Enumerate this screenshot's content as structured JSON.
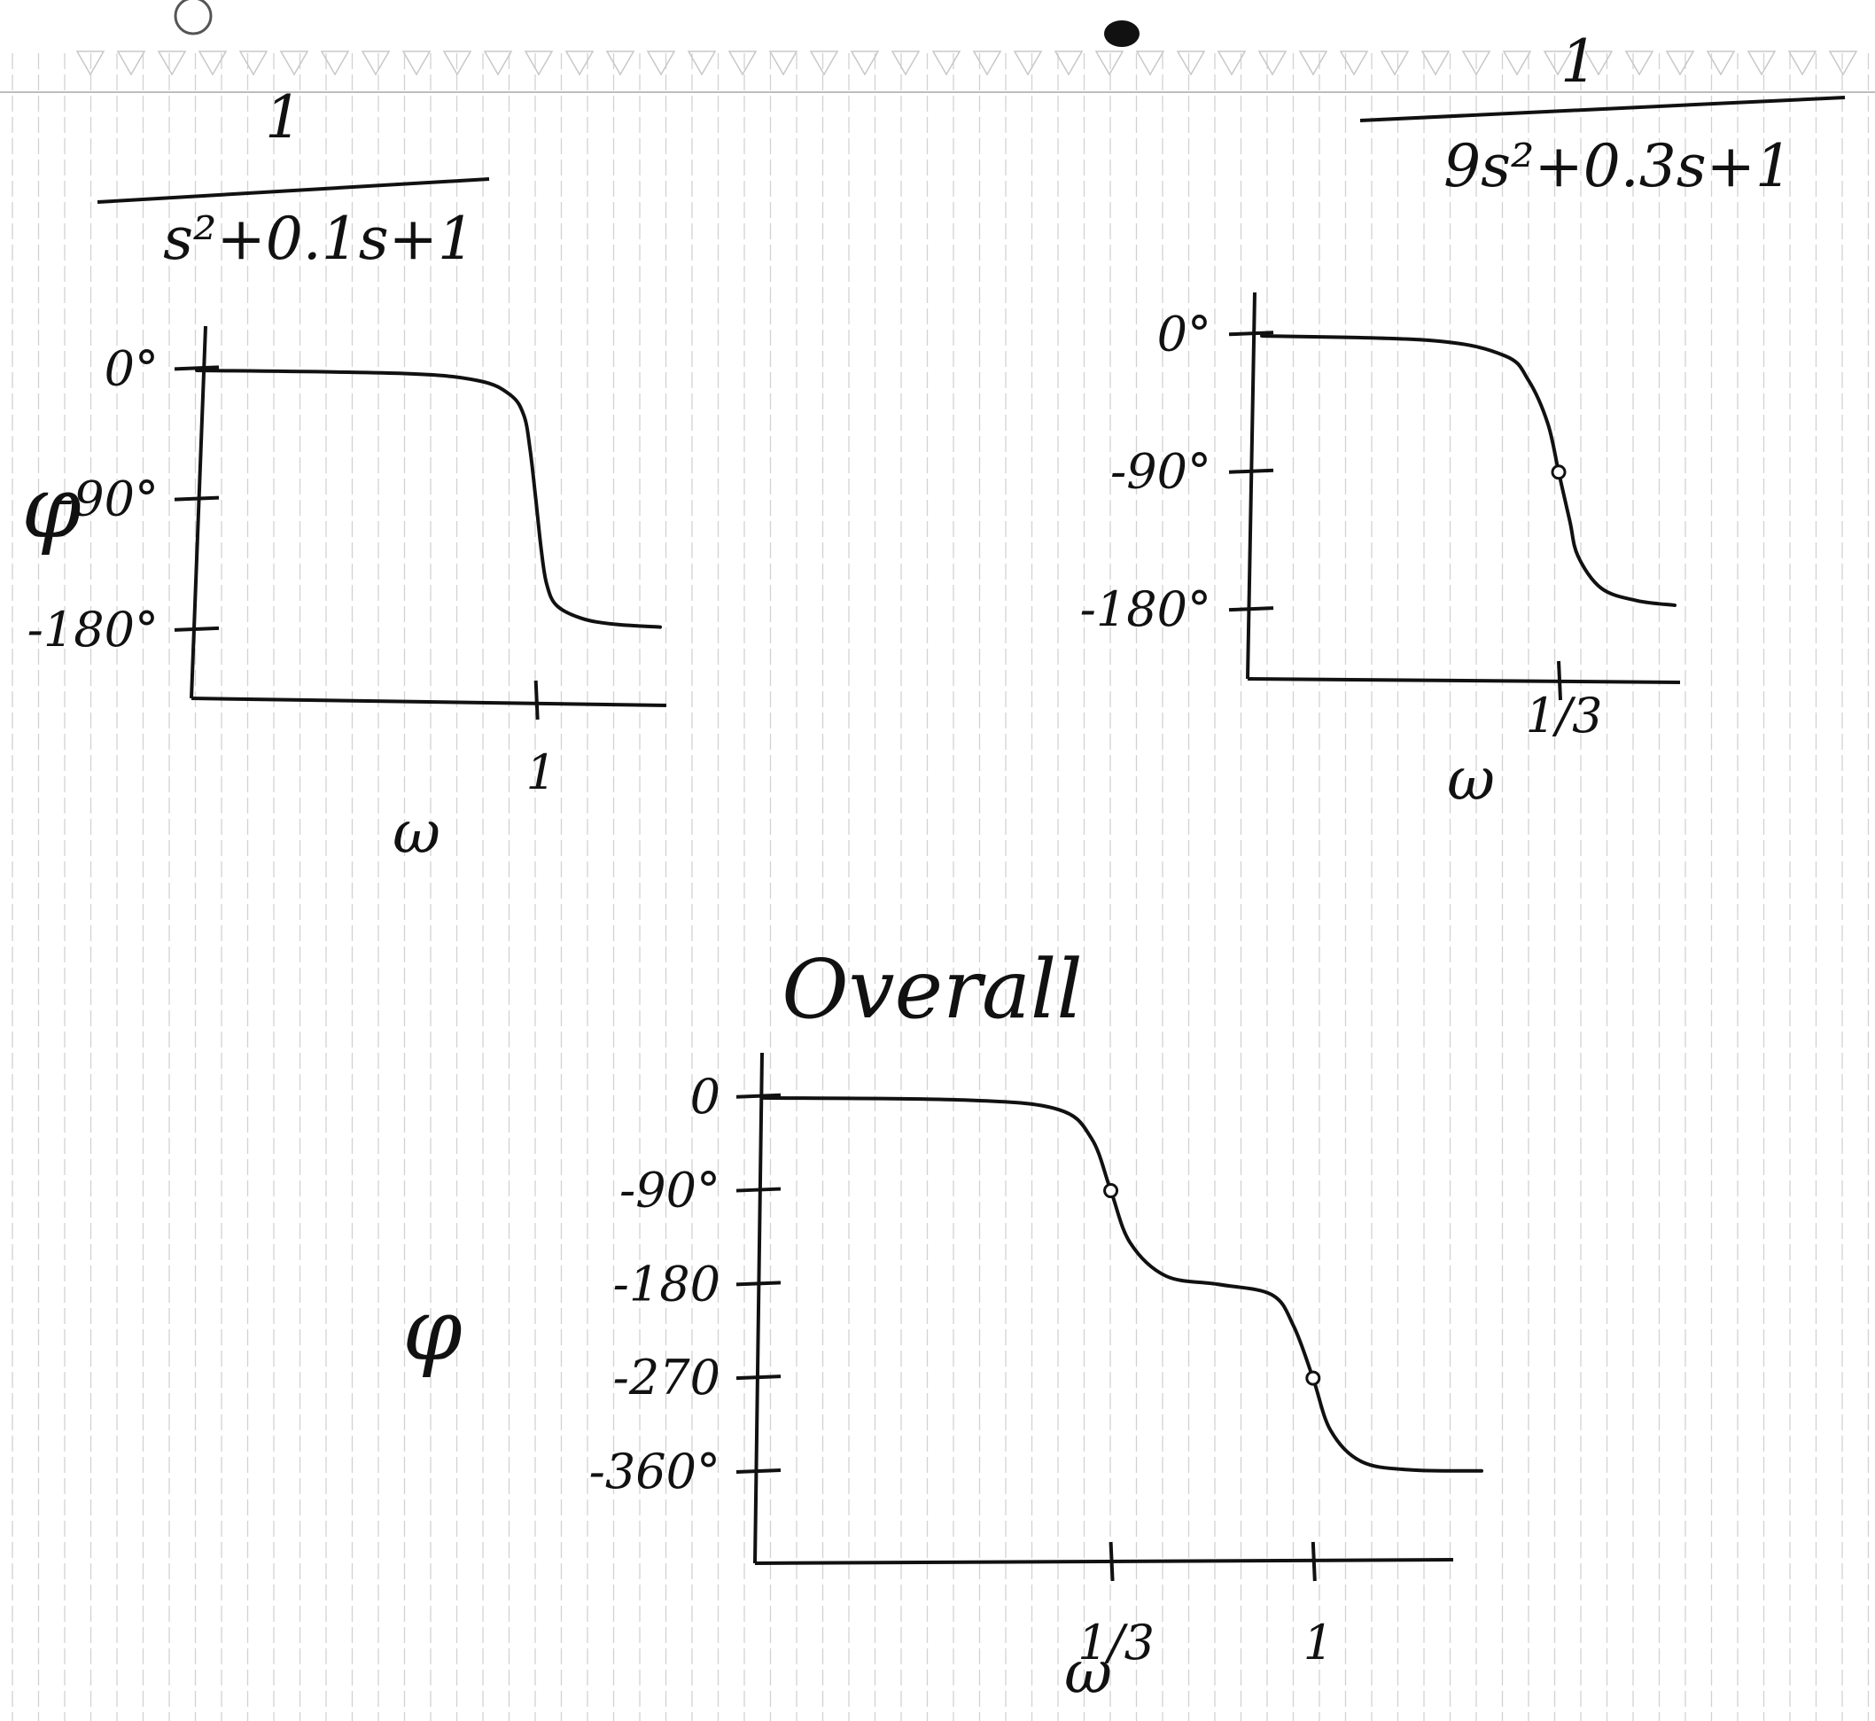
{
  "page": {
    "background": "#ffffff",
    "rule_color": "#d2d2d2",
    "ink_color": "#111111"
  },
  "chart_data": [
    {
      "type": "line",
      "title": "",
      "transfer_function": {
        "numerator": "1",
        "denominator": "s²+0.1s+1"
      },
      "xlabel": "ω",
      "ylabel": "φ",
      "x_ticks": [
        {
          "value": 1,
          "label": "1"
        }
      ],
      "y_ticks": [
        {
          "value": 0,
          "label": "0°"
        },
        {
          "value": -90,
          "label": "-90°"
        },
        {
          "value": -180,
          "label": "-180°"
        }
      ],
      "ylim": [
        -210,
        10
      ],
      "grid": false,
      "series": [
        {
          "x": [
            0.05,
            0.3,
            0.6,
            0.8,
            0.9,
            0.95,
            1.0,
            1.05,
            1.1,
            1.2,
            1.5,
            2.0,
            3.0
          ],
          "y": [
            -1,
            -3,
            -8,
            -18,
            -32,
            -55,
            -90,
            -125,
            -148,
            -163,
            -172,
            -176,
            -178
          ]
        }
      ]
    },
    {
      "type": "line",
      "title": "",
      "transfer_function": {
        "numerator": "1",
        "denominator": "9s²+0.3s+1"
      },
      "xlabel": "ω",
      "ylabel": "",
      "x_ticks": [
        {
          "value": 0.333,
          "label": "1/3"
        }
      ],
      "y_ticks": [
        {
          "value": 0,
          "label": "0°"
        },
        {
          "value": -90,
          "label": "-90°"
        },
        {
          "value": -180,
          "label": "-180°"
        }
      ],
      "ylim": [
        -210,
        10
      ],
      "grid": false,
      "series": [
        {
          "x": [
            0.02,
            0.1,
            0.2,
            0.25,
            0.3,
            0.333,
            0.37,
            0.4,
            0.5,
            0.7,
            1.0
          ],
          "y": [
            -1,
            -4,
            -14,
            -30,
            -58,
            -90,
            -122,
            -145,
            -166,
            -174,
            -177
          ]
        }
      ]
    },
    {
      "type": "line",
      "title": "Overall",
      "xlabel": "ω",
      "ylabel": "φ",
      "x_ticks": [
        {
          "value": 0.333,
          "label": "1/3"
        },
        {
          "value": 1,
          "label": "1"
        }
      ],
      "y_ticks": [
        {
          "value": 0,
          "label": "0"
        },
        {
          "value": -90,
          "label": "-90°"
        },
        {
          "value": -180,
          "label": "-180"
        },
        {
          "value": -270,
          "label": "-270"
        },
        {
          "value": -360,
          "label": "-360°"
        }
      ],
      "ylim": [
        -400,
        10
      ],
      "grid": false,
      "series": [
        {
          "x": [
            0.05,
            0.15,
            0.25,
            0.3,
            0.333,
            0.37,
            0.45,
            0.6,
            0.8,
            0.9,
            1.0,
            1.1,
            1.3,
            1.7,
            2.5
          ],
          "y": [
            -1,
            -3,
            -12,
            -40,
            -90,
            -140,
            -172,
            -180,
            -190,
            -220,
            -270,
            -320,
            -350,
            -358,
            -359
          ]
        }
      ]
    }
  ]
}
